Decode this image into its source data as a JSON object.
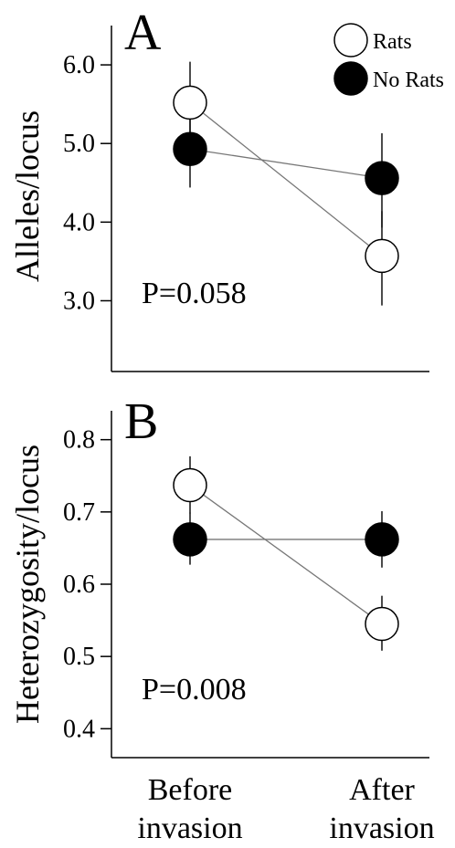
{
  "chart_data": [
    {
      "type": "line",
      "panel_label": "A",
      "ylabel": "Alleles/locus",
      "annotation": "P=0.058",
      "ylim": [
        2.1,
        6.5
      ],
      "yticks": [
        3.0,
        4.0,
        5.0,
        6.0
      ],
      "ytick_labels": [
        "3.0",
        "4.0",
        "5.0",
        "6.0"
      ],
      "categories": [
        "Before invasion",
        "After invasion"
      ],
      "legend": {
        "placement": "top-right"
      },
      "series": [
        {
          "name": "Rats",
          "fill": "#ffffff",
          "values": [
            5.52,
            3.57
          ],
          "err_low": [
            4.97,
            2.94
          ],
          "err_high": [
            6.04,
            4.14
          ]
        },
        {
          "name": "No Rats",
          "fill": "#000000",
          "values": [
            4.93,
            4.56
          ],
          "err_low": [
            4.44,
            3.93
          ],
          "err_high": [
            5.45,
            5.13
          ]
        }
      ]
    },
    {
      "type": "line",
      "panel_label": "B",
      "ylabel": "Heterozygosity/locus",
      "annotation": "P=0.008",
      "ylim": [
        0.36,
        0.84
      ],
      "yticks": [
        0.4,
        0.5,
        0.6,
        0.7,
        0.8
      ],
      "ytick_labels": [
        "0.4",
        "0.5",
        "0.6",
        "0.7",
        "0.8"
      ],
      "categories": [
        "Before invasion",
        "After invasion"
      ],
      "series": [
        {
          "name": "Rats",
          "fill": "#ffffff",
          "values": [
            0.737,
            0.545
          ],
          "err_low": [
            0.698,
            0.508
          ],
          "err_high": [
            0.777,
            0.584
          ]
        },
        {
          "name": "No Rats",
          "fill": "#000000",
          "values": [
            0.662,
            0.662
          ],
          "err_low": [
            0.627,
            0.623
          ],
          "err_high": [
            0.699,
            0.701
          ]
        }
      ]
    }
  ],
  "x_axis": {
    "labels": [
      {
        "line1": "Before",
        "line2": "invasion"
      },
      {
        "line1": "After",
        "line2": "invasion"
      }
    ]
  }
}
